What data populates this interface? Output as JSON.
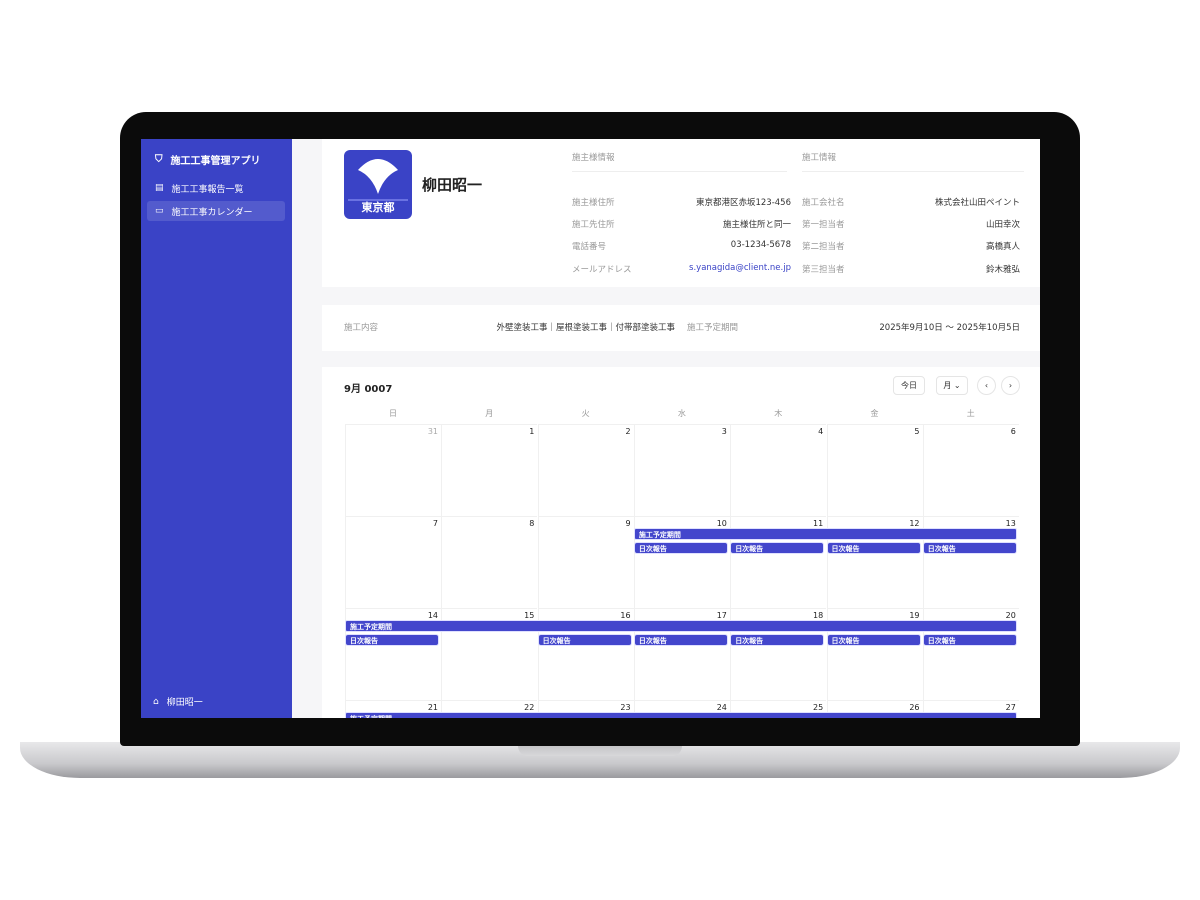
{
  "app": {
    "title": "施工工事管理アプリ",
    "nav": [
      {
        "label": "施工工事報告一覧",
        "icon": "report-icon"
      },
      {
        "label": "施工工事カレンダー",
        "icon": "calendar-icon",
        "active": true
      }
    ],
    "user": "柳田昭一"
  },
  "colors": {
    "accent": "#3a43c6",
    "event": "#4346cc",
    "link": "#3a43c6"
  },
  "client": {
    "logo_text": "東京都",
    "name": "柳田昭一",
    "section_title": "施主様情報",
    "fields": [
      {
        "label": "施主様住所",
        "value": "東京都港区赤坂123-456"
      },
      {
        "label": "施工先住所",
        "value": "施主様住所と同一"
      },
      {
        "label": "電話番号",
        "value": "03-1234-5678"
      },
      {
        "label": "メールアドレス",
        "value": "s.yanagida@client.ne.jp"
      }
    ]
  },
  "construction": {
    "section_title": "施工情報",
    "fields": [
      {
        "label": "施工会社名",
        "value": "株式会社山田ペイント"
      },
      {
        "label": "第一担当者",
        "value": "山田幸次"
      },
      {
        "label": "第二担当者",
        "value": "高橋真人"
      },
      {
        "label": "第三担当者",
        "value": "鈴木雅弘"
      }
    ]
  },
  "summary": {
    "content_label": "施工内容",
    "content_value": "外壁塗装工事｜屋根塗装工事｜付帯部塗装工事",
    "period_label": "施工予定期間",
    "period_value": "2025年9月10日 〜 2025年10月5日"
  },
  "calendar": {
    "title": "9月 0007",
    "today": "今日",
    "view": "月",
    "weekdays": [
      "日",
      "月",
      "火",
      "水",
      "木",
      "金",
      "土"
    ],
    "weeks": [
      [
        "31",
        "1",
        "2",
        "3",
        "4",
        "5",
        "6"
      ],
      [
        "7",
        "8",
        "9",
        "10",
        "11",
        "12",
        "13"
      ],
      [
        "14",
        "15",
        "16",
        "17",
        "18",
        "19",
        "20"
      ],
      [
        "21",
        "22",
        "23",
        "24",
        "25",
        "26",
        "27"
      ]
    ],
    "period_label": "施工予定期間",
    "daily_label": "日次報告",
    "events": [
      {
        "week": 1,
        "start": 3,
        "end": 6,
        "daily": [
          3,
          4,
          5,
          6
        ]
      },
      {
        "week": 2,
        "start": 0,
        "end": 6,
        "daily": [
          0,
          2,
          3,
          4,
          5,
          6
        ]
      },
      {
        "week": 3,
        "start": 0,
        "end": 6,
        "daily": []
      }
    ]
  }
}
